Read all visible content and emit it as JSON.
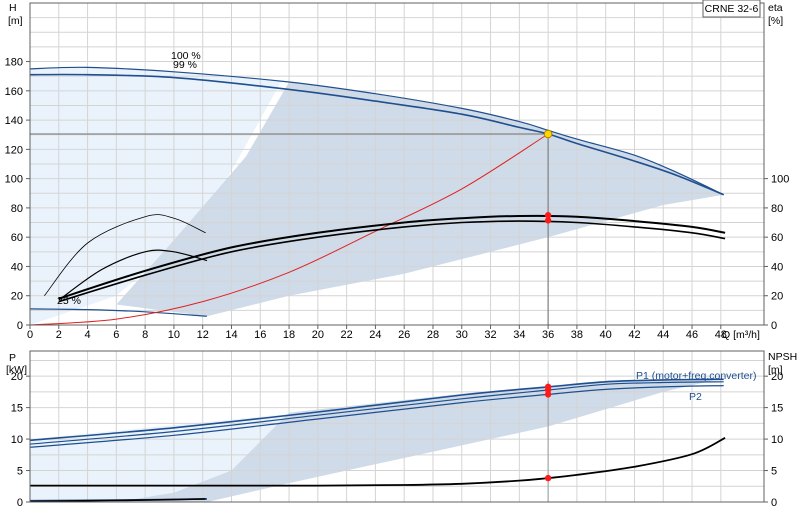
{
  "model_label": "CRNE 32-6",
  "chart_data": [
    {
      "type": "line",
      "title": "",
      "left_axis": {
        "label_lines": [
          "H",
          "[m]"
        ],
        "ticks": [
          0,
          20,
          40,
          60,
          80,
          100,
          120,
          140,
          160,
          180
        ],
        "ylim": [
          0,
          220
        ]
      },
      "right_axis": {
        "label_lines": [
          "eta",
          "[%]"
        ],
        "ticks": [
          0,
          20,
          40,
          60,
          80,
          100
        ],
        "ylim": [
          0,
          220
        ]
      },
      "x_axis": {
        "label": "Q [m³/h]",
        "ticks": [
          0,
          2,
          4,
          6,
          8,
          10,
          12,
          14,
          16,
          18,
          20,
          22,
          24,
          26,
          28,
          30,
          32,
          34,
          36,
          38,
          40,
          42,
          44,
          46,
          48
        ],
        "xlim": [
          0,
          51
        ]
      },
      "grid": true,
      "curve_labels": [
        "100 %",
        "99 %",
        "25 %"
      ],
      "operating_point": {
        "q": 36,
        "h": 130.5,
        "eta_a": 75,
        "eta_b": 71.5
      },
      "series": [
        {
          "name": "100 %",
          "color": "#1f4f8f",
          "x": [
            0,
            4,
            10,
            18,
            24,
            30,
            34,
            36,
            38,
            42,
            45,
            48.2
          ],
          "y": [
            175,
            176,
            173,
            166,
            158,
            148,
            139,
            133,
            127,
            116,
            104,
            89
          ]
        },
        {
          "name": "99 %",
          "color": "#1f4f8f",
          "x": [
            0,
            4,
            10,
            18,
            24,
            30,
            34,
            36,
            38,
            42,
            45,
            48.2
          ],
          "y": [
            171,
            171,
            169,
            161,
            153,
            144,
            135,
            130.5,
            124,
            112,
            102,
            89
          ]
        },
        {
          "name": "25 %",
          "color": "#1f4f8f",
          "x": [
            0,
            4,
            8,
            12.3
          ],
          "y": [
            11,
            10.5,
            9,
            6
          ]
        },
        {
          "color": "#e02020",
          "x": [
            0,
            6,
            12,
            18,
            24,
            30,
            36
          ],
          "y": [
            0,
            4,
            16,
            36,
            64,
            93,
            130.5
          ]
        },
        {
          "color": "#000000",
          "x": [
            2,
            8,
            14,
            20,
            26,
            30,
            34,
            38,
            42,
            46,
            48.3
          ],
          "y": [
            18,
            37,
            53,
            63,
            70,
            73,
            74.5,
            74,
            71,
            67,
            63
          ]
        },
        {
          "color": "#000000",
          "x": [
            2,
            8,
            14,
            20,
            26,
            30,
            34,
            38,
            42,
            46,
            48.3
          ],
          "y": [
            16,
            34,
            50,
            60,
            67,
            70,
            71,
            70,
            67,
            63,
            59
          ]
        },
        {
          "color": "#000000",
          "x": [
            1,
            4,
            8,
            10,
            12.2
          ],
          "y": [
            20,
            56,
            74,
            73,
            63
          ]
        },
        {
          "color": "#000000",
          "x": [
            2,
            5,
            8,
            10,
            12.3
          ],
          "y": [
            17,
            38,
            50,
            50,
            44
          ]
        }
      ]
    },
    {
      "type": "line",
      "title": "",
      "left_axis": {
        "label_lines": [
          "P",
          "[kW]"
        ],
        "ticks": [
          0,
          5,
          10,
          15,
          20
        ],
        "ylim": [
          0,
          24
        ]
      },
      "right_axis": {
        "label_lines": [
          "NPSH",
          "[m]"
        ],
        "ticks": [
          0,
          5,
          10,
          15,
          20
        ],
        "ylim": [
          0,
          24
        ]
      },
      "xlim": [
        0,
        51
      ],
      "grid": true,
      "series": [
        {
          "name": "P1 (motor+freq.converter)",
          "color": "#1f4f8f",
          "x": [
            0,
            10,
            20,
            30,
            36,
            40,
            44,
            48.2
          ],
          "y": [
            9.8,
            11.8,
            14.3,
            17.0,
            18.3,
            19.1,
            19.4,
            19.5
          ]
        },
        {
          "color": "#1f4f8f",
          "x": [
            0,
            10,
            20,
            30,
            36,
            40,
            44,
            48.2
          ],
          "y": [
            9.2,
            11.2,
            13.8,
            16.4,
            17.8,
            18.7,
            19.0,
            19.1
          ]
        },
        {
          "name": "P2",
          "color": "#1f4f8f",
          "x": [
            0,
            10,
            20,
            30,
            36,
            40,
            44,
            48.2
          ],
          "y": [
            8.7,
            10.6,
            13.2,
            15.8,
            17.1,
            17.9,
            18.3,
            18.5
          ]
        },
        {
          "color": "#1f4f8f",
          "x": [
            0,
            6,
            12.3
          ],
          "y": [
            0.2,
            0.3,
            0.5
          ]
        },
        {
          "color": "#000000",
          "x": [
            0,
            10,
            20,
            26,
            30,
            34,
            36,
            38,
            42,
            46,
            48.3
          ],
          "y": [
            2.6,
            2.6,
            2.6,
            2.7,
            2.9,
            3.4,
            3.8,
            4.3,
            5.6,
            7.6,
            10.2
          ]
        },
        {
          "color": "#000000",
          "x": [
            0,
            4,
            8,
            12.2
          ],
          "y": [
            0.1,
            0.2,
            0.3,
            0.5
          ]
        }
      ],
      "markers": {
        "q": 36,
        "values": [
          18.3,
          17.8,
          17.1,
          3.8
        ]
      }
    }
  ]
}
